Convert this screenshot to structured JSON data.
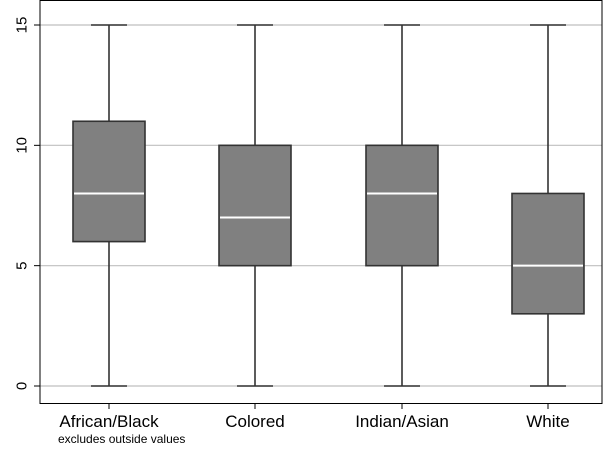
{
  "chart_data": {
    "type": "box",
    "title": "",
    "xlabel": "",
    "ylabel": "",
    "ylim": [
      0,
      15
    ],
    "yticks": [
      0,
      5,
      10,
      15
    ],
    "grid": true,
    "note": "excludes outside values",
    "colors": {
      "box_fill": "#808080",
      "box_stroke": "#333333",
      "median": "#ffffff",
      "whisker": "#333333",
      "grid": "#bfbfbf"
    },
    "categories": [
      "African/Black",
      "Colored",
      "Indian/Asian",
      "White"
    ],
    "boxes": [
      {
        "category": "African/Black",
        "min": 0,
        "q1": 6,
        "median": 8,
        "q3": 11,
        "max": 15
      },
      {
        "category": "Colored",
        "min": 0,
        "q1": 5,
        "median": 7,
        "q3": 10,
        "max": 15
      },
      {
        "category": "Indian/Asian",
        "min": 0,
        "q1": 5,
        "median": 8,
        "q3": 10,
        "max": 15
      },
      {
        "category": "White",
        "min": 0,
        "q1": 3,
        "median": 5,
        "q3": 8,
        "max": 15
      }
    ]
  }
}
